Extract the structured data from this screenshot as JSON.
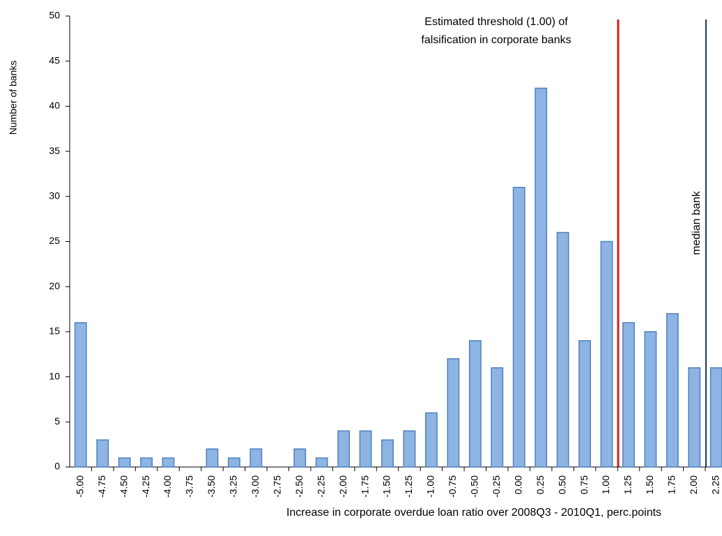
{
  "chart_data": {
    "type": "bar",
    "y_label": "Number of banks",
    "x_label": "Increase in corporate overdue loan ratio over  2008Q3  - 2010Q1, perc.points",
    "threshold_label": [
      "Estimated threshold  (1.00) of",
      "falsification in corporate banks"
    ],
    "median_label": "median bank",
    "categories": [
      "-5.00",
      "-4.75",
      "-4.50",
      "-4.25",
      "-4.00",
      "-3.75",
      "-3.50",
      "-3.25",
      "-3.00",
      "-2.75",
      "-2.50",
      "-2.25",
      "-2.00",
      "-1.75",
      "-1.50",
      "-1.25",
      "-1.00",
      "-0.75",
      "-0.50",
      "-0.25",
      "0.00",
      "0.25",
      "0.50",
      "0.75",
      "1.00",
      "1.25",
      "1.50",
      "1.75",
      "2.00",
      "2.25"
    ],
    "values": [
      16,
      3,
      1,
      1,
      1,
      0,
      2,
      1,
      2,
      0,
      2,
      1,
      4,
      4,
      3,
      4,
      6,
      12,
      14,
      11,
      31,
      42,
      26,
      14,
      25,
      16,
      15,
      17,
      11,
      11
    ],
    "color": "#8db4e2",
    "ylim": [
      0,
      50
    ],
    "yticks": [
      0,
      5,
      10,
      15,
      20,
      25,
      30,
      35,
      40,
      45,
      50
    ],
    "grid": false
  }
}
